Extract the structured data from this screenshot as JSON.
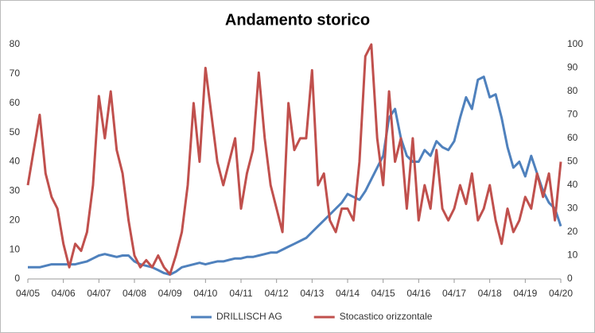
{
  "chart_data": {
    "type": "line",
    "title": "Andamento storico",
    "categories": [
      "04/05",
      null,
      null,
      null,
      null,
      null,
      "04/06",
      null,
      null,
      null,
      null,
      null,
      "04/07",
      null,
      null,
      null,
      null,
      null,
      "04/08",
      null,
      null,
      null,
      null,
      null,
      "04/09",
      null,
      null,
      null,
      null,
      null,
      "04/10",
      null,
      null,
      null,
      null,
      null,
      "04/11",
      null,
      null,
      null,
      null,
      null,
      "04/12",
      null,
      null,
      null,
      null,
      null,
      "04/13",
      null,
      null,
      null,
      null,
      null,
      "04/14",
      null,
      null,
      null,
      null,
      null,
      "04/15",
      null,
      null,
      null,
      null,
      null,
      "04/16",
      null,
      null,
      null,
      null,
      null,
      "04/17",
      null,
      null,
      null,
      null,
      null,
      "04/18",
      null,
      null,
      null,
      null,
      null,
      "04/19",
      null,
      null,
      null,
      null,
      null,
      "04/20"
    ],
    "series": [
      {
        "name": "DRILLISCH AG",
        "color": "#4f81bd",
        "axis": "y",
        "values": [
          4,
          4,
          4,
          4.5,
          5,
          5,
          5,
          5,
          5,
          5.5,
          6,
          7,
          8,
          8.5,
          8,
          7.5,
          8,
          8,
          6,
          5,
          4.5,
          4,
          3,
          2,
          1.5,
          2.5,
          4,
          4.5,
          5,
          5.5,
          5,
          5.5,
          6,
          6,
          6.5,
          7,
          7,
          7.5,
          7.5,
          8,
          8.5,
          9,
          9,
          10,
          11,
          12,
          13,
          14,
          16,
          18,
          20,
          22,
          24,
          26,
          29,
          28,
          27,
          30,
          34,
          38,
          42,
          55,
          58,
          48,
          42,
          40,
          40,
          44,
          42,
          47,
          45,
          44,
          47,
          55,
          62,
          58,
          68,
          69,
          62,
          63,
          55,
          45,
          38,
          40,
          35,
          42,
          36,
          30,
          26,
          24,
          18
        ]
      },
      {
        "name": "Stocastico orizzontale",
        "color": "#c0504d",
        "axis": "y2",
        "values": [
          40,
          55,
          70,
          45,
          35,
          30,
          15,
          5,
          15,
          12,
          20,
          40,
          78,
          60,
          80,
          55,
          45,
          25,
          10,
          5,
          8,
          5,
          10,
          5,
          2,
          10,
          20,
          40,
          75,
          50,
          90,
          70,
          50,
          40,
          50,
          60,
          30,
          45,
          55,
          88,
          60,
          40,
          30,
          20,
          75,
          55,
          60,
          60,
          89,
          40,
          45,
          25,
          20,
          30,
          30,
          25,
          50,
          95,
          100,
          60,
          40,
          80,
          50,
          60,
          30,
          60,
          25,
          40,
          30,
          55,
          30,
          25,
          30,
          40,
          32,
          45,
          25,
          30,
          40,
          25,
          15,
          30,
          20,
          25,
          35,
          30,
          45,
          35,
          45,
          25,
          50
        ]
      }
    ],
    "ylim": [
      0,
      80
    ],
    "yticks": [
      0,
      10,
      20,
      30,
      40,
      50,
      60,
      70,
      80
    ],
    "y2lim": [
      0,
      100
    ],
    "y2ticks": [
      0,
      10,
      20,
      30,
      40,
      50,
      60,
      70,
      80,
      90,
      100
    ],
    "legend": "bottom"
  }
}
